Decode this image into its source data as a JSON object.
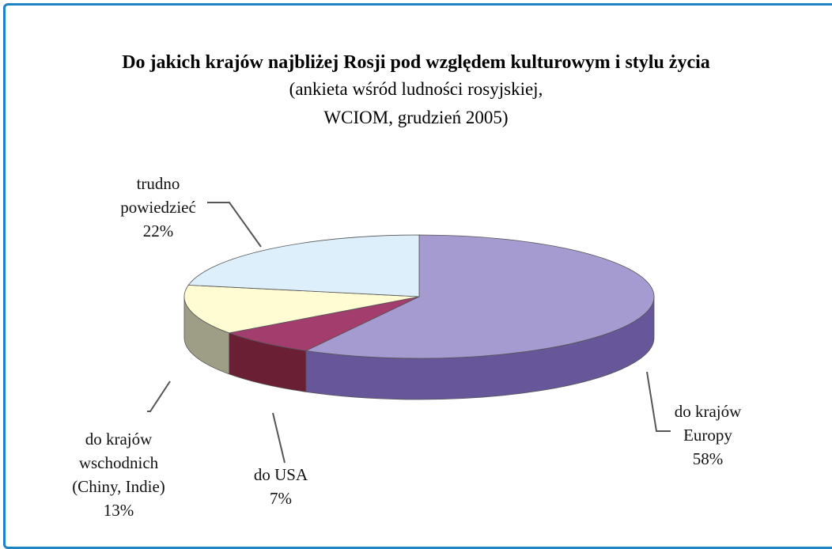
{
  "chart_data": {
    "type": "pie3d",
    "title": "Do jakich krajów najbliżej Rosji pod względem kulturowym i stylu życia",
    "subtitle": [
      "(ankieta wśród ludności rosyjskiej,",
      "WCIOM, grudzień 2005)"
    ],
    "categories": [
      "do krajów Europy",
      "do USA",
      "do krajów wschodnich (Chiny, Indie)",
      "trudno powiedzieć"
    ],
    "values": [
      58,
      7,
      13,
      22
    ],
    "value_labels": [
      "58%",
      "7%",
      "13%",
      "22%"
    ],
    "colors": [
      "#a59bd0",
      "#a23d6e",
      "#fffbd2",
      "#dceffa"
    ],
    "side_colors": [
      "#67569a",
      "#6a1f35",
      "#9d9e85",
      "#a9bccb"
    ]
  }
}
